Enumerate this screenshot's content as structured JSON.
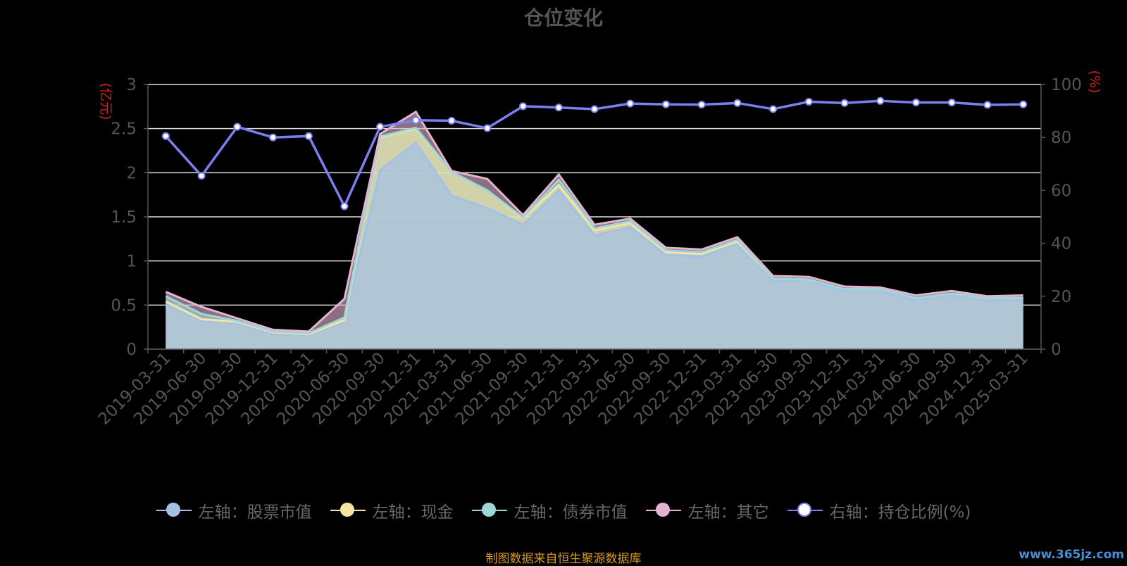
{
  "chart_data": {
    "type": "area",
    "title": "仓位变化",
    "y_left_label": "(亿元)",
    "y_right_label": "(%)",
    "y_left_ticks": [
      "0",
      "0.5",
      "1",
      "1.5",
      "2",
      "2.5",
      "3"
    ],
    "y_right_ticks": [
      "0",
      "20",
      "40",
      "60",
      "80",
      "100"
    ],
    "ylim_left": [
      0,
      3
    ],
    "ylim_right": [
      0,
      100
    ],
    "grid": true,
    "legend_position": "bottom",
    "categories": [
      "2019-03-31",
      "2019-06-30",
      "2019-09-30",
      "2019-12-31",
      "2020-03-31",
      "2020-06-30",
      "2020-09-30",
      "2020-12-31",
      "2021-03-31",
      "2021-06-30",
      "2021-09-30",
      "2021-12-31",
      "2022-03-31",
      "2022-06-30",
      "2022-09-30",
      "2022-12-31",
      "2023-03-31",
      "2023-06-30",
      "2023-09-30",
      "2023-12-31",
      "2024-03-31",
      "2024-06-30",
      "2024-09-30",
      "2024-12-31",
      "2025-03-31"
    ],
    "series": [
      {
        "name": "左轴：股票市值",
        "axis": "left",
        "stack": true,
        "color": "#a5c0e6",
        "values": [
          0.51,
          0.32,
          0.29,
          0.17,
          0.16,
          0.31,
          2.03,
          2.34,
          1.74,
          1.6,
          1.41,
          1.8,
          1.29,
          1.38,
          1.07,
          1.05,
          1.2,
          0.77,
          0.77,
          0.66,
          0.66,
          0.56,
          0.61,
          0.55,
          0.56
        ]
      },
      {
        "name": "左轴：现金",
        "axis": "left",
        "stack": true,
        "color": "#f6e6a1",
        "values": [
          0.03,
          0.02,
          0.02,
          0.02,
          0.01,
          0.02,
          0.37,
          0.16,
          0.27,
          0.2,
          0.07,
          0.06,
          0.06,
          0.05,
          0.03,
          0.03,
          0.02,
          0.03,
          0.02,
          0.02,
          0.02,
          0.02,
          0.02,
          0.03,
          0.02
        ]
      },
      {
        "name": "左轴：债券市值",
        "axis": "left",
        "stack": true,
        "color": "#9dd8d8",
        "values": [
          0.06,
          0.06,
          0.01,
          0.01,
          0.01,
          0.03,
          0.01,
          0.01,
          0.0,
          0.0,
          0.01,
          0.06,
          0.02,
          0.02,
          0.02,
          0.02,
          0.02,
          0.0,
          0.0,
          0.0,
          0.0,
          0.0,
          0.0,
          0.0,
          0.0
        ]
      },
      {
        "name": "左轴：其它",
        "axis": "left",
        "stack": true,
        "color": "#e2b4d2",
        "values": [
          0.05,
          0.08,
          0.03,
          0.02,
          0.02,
          0.21,
          0.03,
          0.18,
          0.01,
          0.13,
          0.03,
          0.06,
          0.04,
          0.03,
          0.03,
          0.03,
          0.03,
          0.03,
          0.03,
          0.03,
          0.02,
          0.03,
          0.03,
          0.02,
          0.03
        ]
      },
      {
        "name": "右轴：持仓比例(%)",
        "axis": "right",
        "stack": false,
        "color": "#7b7ff0",
        "values": [
          80.5,
          65.5,
          84,
          80,
          80.5,
          54,
          84,
          86.5,
          86.3,
          83.5,
          91.8,
          91.3,
          90.7,
          92.8,
          92.5,
          92.4,
          93,
          90.7,
          93.5,
          93,
          93.8,
          93.2,
          93.2,
          92.3,
          92.5
        ]
      }
    ]
  },
  "footer": "制图数据来自恒生聚源数据库",
  "watermark": "www.365jz.com"
}
